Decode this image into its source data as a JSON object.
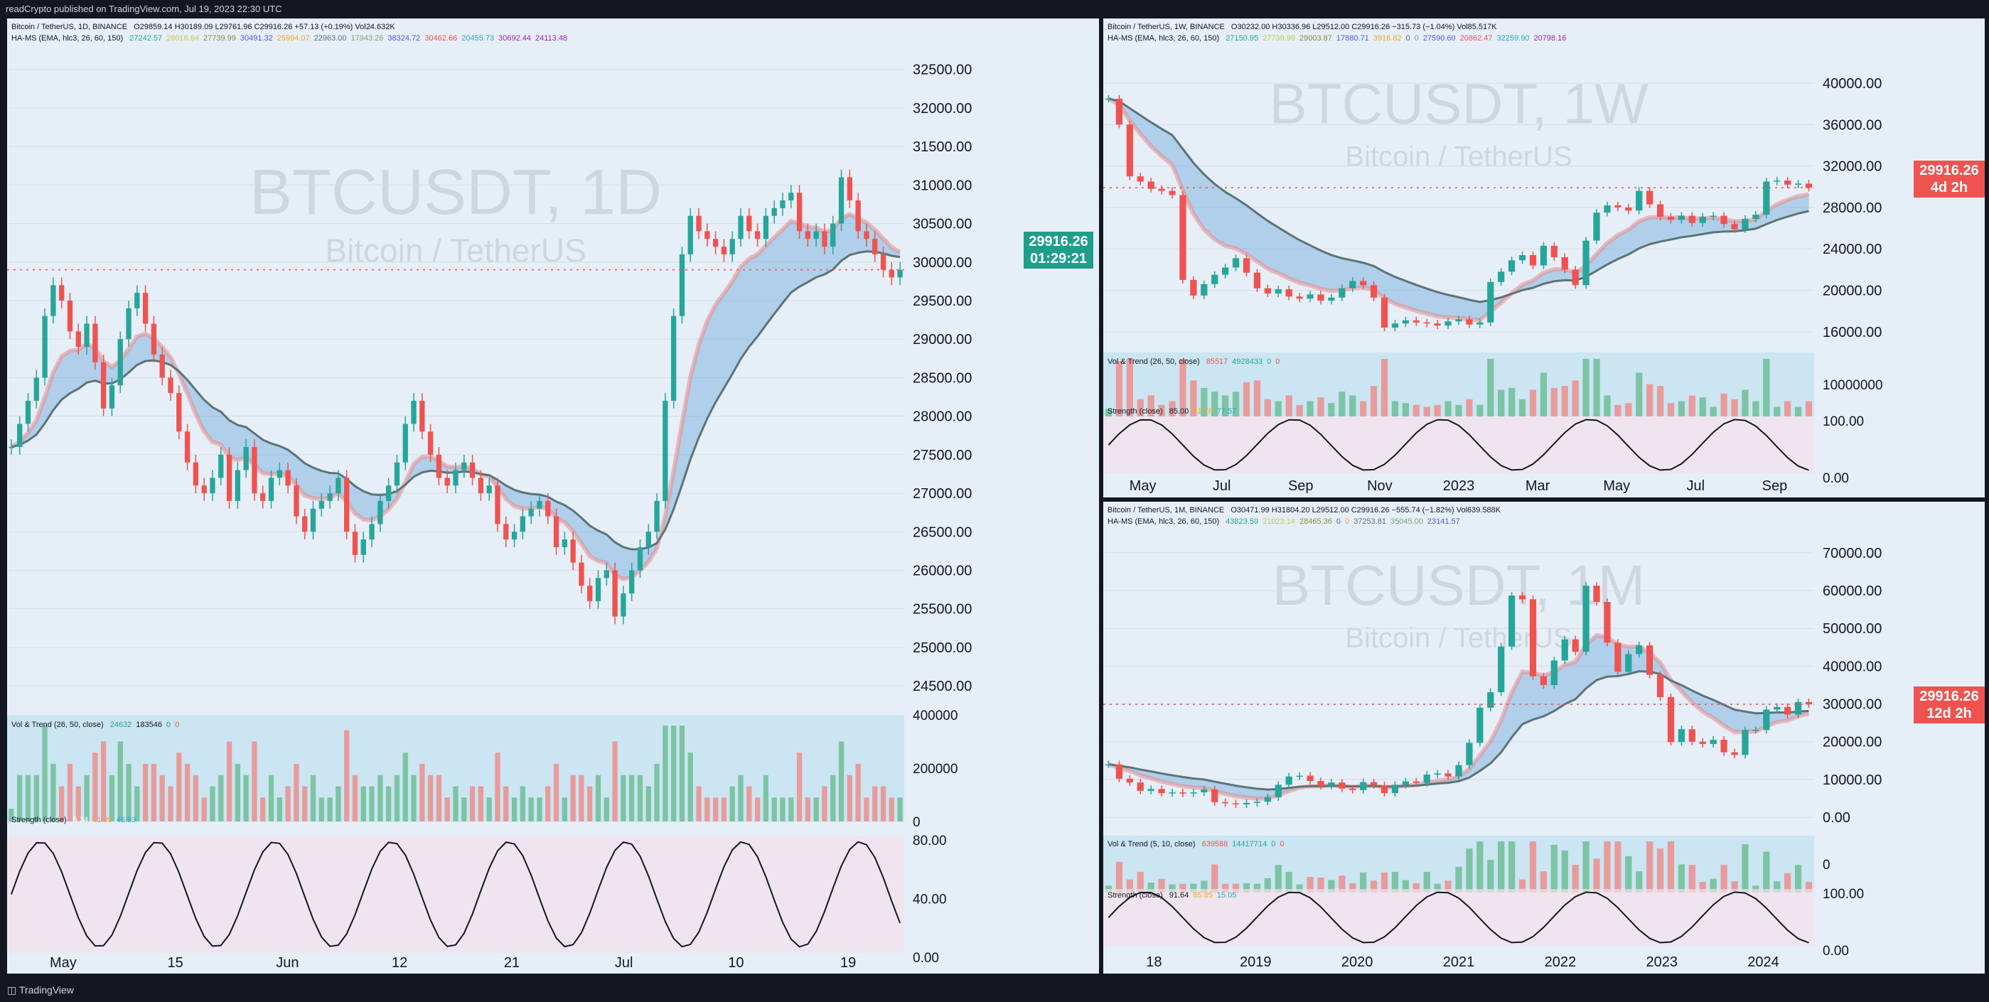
{
  "header": {
    "text": "readCrypto published on TradingView.com, Jul 19, 2023 22:30 UTC"
  },
  "footer": {
    "brand": "TradingView"
  },
  "colors": {
    "up": "#26a69a",
    "down": "#ef5350",
    "purple": "#9c27b0",
    "blue": "#4a5ee5",
    "orange": "#f5a623",
    "olive": "#8d8d3a",
    "yellow": "#c9c94a",
    "grey": "#5c7477",
    "priceTagDaily": "#1f9e8c",
    "priceTagRed": "#ef5350"
  },
  "chart_data": [
    {
      "type": "line",
      "id": "daily",
      "legend": {
        "title": "Bitcoin / TetherUS, 1D, BINANCE",
        "ohlc": "O29859.14 H30189.09 L29761.96 C29916.26 +57.13 (+0.19%) Vol24.632K",
        "ha_label": "HA-MS (EMA, hlc3, 26, 60, 150)",
        "ha_values": [
          "27242.57",
          "28016.64",
          "27739.99",
          "30491.32",
          "25994.07",
          "22963.00",
          "17943.26",
          "38324.72",
          "30462.66",
          "20455.73",
          "30692.44",
          "24113.48"
        ],
        "vol_label": "Vol & Trend (26, 50, close)",
        "vol_values": [
          "24632",
          "183546",
          "0",
          "0"
        ],
        "str_label": "Strength (close)",
        "str_values": [
          "5.34",
          "41.99",
          "46.93"
        ]
      },
      "watermark": {
        "symbol": "BTCUSDT, 1D",
        "name": "Bitcoin / TetherUS"
      },
      "price_axis": [
        "32500.00",
        "32000.00",
        "31500.00",
        "31000.00",
        "30500.00",
        "30000.00",
        "29500.00",
        "29000.00",
        "28500.00",
        "28000.00",
        "27500.00",
        "27000.00",
        "26500.00",
        "26000.00",
        "25500.00",
        "25000.00",
        "24500.00"
      ],
      "vol_axis": [
        "400000",
        "200000",
        "0"
      ],
      "str_axis": [
        "80.00",
        "40.00",
        "0.00"
      ],
      "time_axis": [
        "May",
        "15",
        "Jun",
        "12",
        "21",
        "Jul",
        "10",
        "19"
      ],
      "last_price": "29916.26",
      "countdown": "01:29:21",
      "ylim": [
        24400,
        32700
      ],
      "closes": [
        27600,
        27900,
        28200,
        28500,
        29300,
        29700,
        29500,
        29100,
        28900,
        29200,
        28700,
        28100,
        28400,
        29000,
        29400,
        29600,
        29200,
        28800,
        28500,
        28300,
        27800,
        27400,
        27100,
        27000,
        27200,
        27500,
        26900,
        27300,
        27600,
        27000,
        26900,
        27200,
        27300,
        27100,
        26700,
        26500,
        26800,
        26900,
        27000,
        27200,
        26500,
        26200,
        26400,
        26600,
        26900,
        27100,
        27400,
        27900,
        28200,
        27800,
        27500,
        27200,
        27100,
        27300,
        27400,
        27200,
        27000,
        27100,
        26600,
        26400,
        26500,
        26700,
        26800,
        26900,
        26700,
        26300,
        26400,
        26100,
        25800,
        25600,
        25900,
        26000,
        25400,
        25700,
        26000,
        26300,
        26500,
        26900,
        28200,
        29300,
        30100,
        30600,
        30400,
        30300,
        30200,
        30100,
        30300,
        30600,
        30400,
        30300,
        30600,
        30700,
        30800,
        30900,
        30400,
        30300,
        30400,
        30200,
        30500,
        31100,
        30800,
        30400,
        30300,
        30100,
        29900,
        29800,
        29900
      ]
    },
    {
      "type": "line",
      "id": "weekly",
      "legend": {
        "title": "Bitcoin / TetherUS, 1W, BINANCE",
        "ohlc": "O30232.00 H30336.96 L29512.00 C29916.26 −315.73 (−1.04%) Vol85.517K",
        "ha_label": "HA-MS (EMA, hlc3, 26, 60, 150)",
        "ha_values": [
          "27150.95",
          "27739.99",
          "29003.87",
          "17880.71",
          "3916.82",
          "0",
          "0",
          "27590.60",
          "20862.47",
          "32259.90",
          "20798.16"
        ],
        "vol_label": "Vol & Trend (26, 50, close)",
        "vol_values": [
          "85517",
          "4928433",
          "0",
          "0"
        ],
        "str_label": "Strength (close)",
        "str_values": [
          "85.00",
          "81.78",
          "77.57"
        ]
      },
      "watermark": {
        "symbol": "BTCUSDT, 1W",
        "name": "Bitcoin / TetherUS"
      },
      "price_axis": [
        "40000.00",
        "36000.00",
        "32000.00",
        "28000.00",
        "24000.00",
        "20000.00",
        "16000.00"
      ],
      "vol_axis": [
        "10000000"
      ],
      "str_axis": [
        "100.00",
        "0.00"
      ],
      "time_axis": [
        "May",
        "Jul",
        "Sep",
        "Nov",
        "2023",
        "Mar",
        "May",
        "Jul",
        "Sep"
      ],
      "last_price": "29916.26",
      "countdown": "4d 2h",
      "ylim": [
        14000,
        43500
      ],
      "closes": [
        38500,
        36000,
        31000,
        30500,
        29800,
        29600,
        29200,
        21000,
        19500,
        20600,
        21500,
        22200,
        23100,
        21700,
        20200,
        19700,
        20100,
        19400,
        19200,
        19600,
        19000,
        19300,
        20200,
        20900,
        20500,
        19300,
        16400,
        16800,
        17100,
        16900,
        16800,
        16600,
        17000,
        17200,
        16700,
        16900,
        20800,
        21800,
        22900,
        23400,
        22400,
        24300,
        23200,
        22000,
        20500,
        24800,
        27500,
        28200,
        28000,
        27700,
        29600,
        28300,
        27100,
        26800,
        27200,
        26500,
        27100,
        27200,
        26400,
        25900,
        26900,
        27300,
        30500,
        30600,
        30200,
        30300,
        29900
      ]
    },
    {
      "type": "line",
      "id": "monthly",
      "legend": {
        "title": "Bitcoin / TetherUS, 1M, BINANCE",
        "ohlc": "O30471.99 H31804.20 L29512.00 C29916.26 −555.74 (−1.82%) Vol639.588K",
        "ha_label": "HA-MS (EMA, hlc3, 26, 60, 150)",
        "ha_values": [
          "43823.59",
          "21023.14",
          "28465.36",
          "0",
          "0",
          "37253.81",
          "35045.00",
          "23141.57"
        ],
        "vol_label": "Vol & Trend (5, 10, close)",
        "vol_values": [
          "639588",
          "14417714",
          "0",
          "0"
        ],
        "str_label": "Strength (close)",
        "str_values": [
          "91.64",
          "85.85",
          "15.05"
        ]
      },
      "watermark": {
        "symbol": "BTCUSDT, 1M",
        "name": "Bitcoin / TetherUS"
      },
      "price_axis": [
        "70000.00",
        "60000.00",
        "50000.00",
        "40000.00",
        "30000.00",
        "20000.00",
        "10000.00",
        "0.00"
      ],
      "vol_axis": [
        "0"
      ],
      "str_axis": [
        "100.00",
        "0.00"
      ],
      "time_axis": [
        "18",
        "2019",
        "2020",
        "2021",
        "2022",
        "2023",
        "2024"
      ],
      "last_price": "29916.26",
      "countdown": "12d 2h",
      "ylim": [
        -3000,
        76000
      ],
      "closes": [
        14000,
        10200,
        9200,
        7000,
        7500,
        6400,
        6600,
        6300,
        6600,
        7400,
        4000,
        3700,
        3400,
        3800,
        4100,
        5300,
        8600,
        10800,
        11000,
        9600,
        8300,
        9200,
        7600,
        7200,
        9300,
        8500,
        6400,
        8600,
        9500,
        9100,
        11300,
        11600,
        10800,
        13800,
        19700,
        29000,
        33100,
        45200,
        58700,
        57700,
        37300,
        35000,
        41500,
        47100,
        43800,
        61300,
        57000,
        46200,
        38500,
        43200,
        45500,
        37700,
        31800,
        19900,
        23300,
        20000,
        19400,
        20500,
        17200,
        16500,
        23100,
        23100,
        28500,
        29200,
        27200,
        30500,
        29900
      ]
    }
  ]
}
